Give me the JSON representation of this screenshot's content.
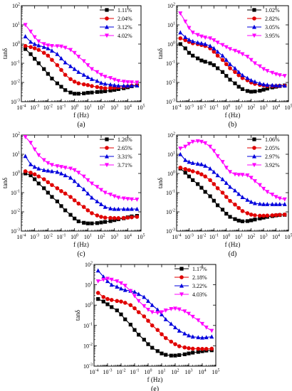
{
  "chart_data": [
    {
      "type": "line",
      "panel_label": "(a)",
      "xlabel": "f (Hz)",
      "ylabel": "tanδ",
      "xscale": "log",
      "yscale": "log",
      "xlim": [
        0.0001,
        100000
      ],
      "ylim": [
        0.001,
        100
      ],
      "xtick_exponents": [
        -4,
        -3,
        -2,
        -1,
        0,
        1,
        2,
        3,
        4,
        5
      ],
      "ytick_exponents": [
        -3,
        -2,
        -1,
        0,
        1,
        2
      ],
      "legend_position": "top-right",
      "x": [
        0.0002,
        0.0005,
        0.001,
        0.002,
        0.005,
        0.01,
        0.02,
        0.05,
        0.1,
        0.2,
        0.5,
        1,
        2,
        5,
        10,
        20,
        50,
        100,
        200,
        500,
        1000,
        2000,
        5000,
        10000,
        20000,
        50000
      ],
      "series": [
        {
          "name": "1.11%",
          "marker": "square",
          "color": "#000000",
          "values": [
            0.55,
            0.3,
            0.17,
            0.1,
            0.05,
            0.028,
            0.016,
            0.009,
            0.006,
            0.004,
            0.003,
            0.0026,
            0.0026,
            0.0027,
            0.0029,
            0.003,
            0.0032,
            0.0033,
            0.0035,
            0.0038,
            0.0041,
            0.0045,
            0.005,
            0.0056,
            0.0063,
            0.007
          ]
        },
        {
          "name": "2.04%",
          "marker": "circle",
          "color": "#e00000",
          "values": [
            0.8,
            0.7,
            0.6,
            0.5,
            0.35,
            0.25,
            0.15,
            0.08,
            0.045,
            0.025,
            0.015,
            0.011,
            0.009,
            0.008,
            0.0073,
            0.0065,
            0.0058,
            0.0053,
            0.005,
            0.0052,
            0.0054,
            0.0057,
            0.006,
            0.0063,
            0.0067,
            0.007
          ]
        },
        {
          "name": "3.12%",
          "marker": "triangle",
          "color": "#0000dd",
          "values": [
            2.5,
            1.3,
            1.0,
            0.85,
            0.7,
            0.6,
            0.45,
            0.3,
            0.18,
            0.11,
            0.07,
            0.05,
            0.035,
            0.025,
            0.019,
            0.015,
            0.012,
            0.0095,
            0.0085,
            0.0078,
            0.0072,
            0.0068,
            0.0067,
            0.0067,
            0.0068,
            0.0069
          ]
        },
        {
          "name": "4.02%",
          "marker": "triangle-down",
          "color": "#ff00ff",
          "values": [
            10,
            4.5,
            2.3,
            1.4,
            1.0,
            0.85,
            0.8,
            0.78,
            0.75,
            0.65,
            0.5,
            0.35,
            0.22,
            0.13,
            0.08,
            0.05,
            0.035,
            0.025,
            0.02,
            0.017,
            0.014,
            0.012,
            0.011,
            0.0105,
            0.0102,
            0.01
          ]
        }
      ]
    },
    {
      "type": "line",
      "panel_label": "(b)",
      "xlabel": "f (Hz)",
      "ylabel": "tanδ",
      "xscale": "log",
      "yscale": "log",
      "xlim": [
        0.0001,
        100000
      ],
      "ylim": [
        0.001,
        100
      ],
      "xtick_exponents": [
        -4,
        -3,
        -2,
        -1,
        0,
        1,
        2,
        3,
        4,
        5
      ],
      "ytick_exponents": [
        -3,
        -2,
        -1,
        0,
        1,
        2
      ],
      "legend_position": "top-right",
      "x": [
        0.0002,
        0.0005,
        0.001,
        0.002,
        0.005,
        0.01,
        0.02,
        0.05,
        0.1,
        0.2,
        0.5,
        1,
        2,
        5,
        10,
        20,
        50,
        100,
        200,
        500,
        1000,
        2000,
        5000,
        10000,
        20000,
        50000
      ],
      "series": [
        {
          "name": "1.02%",
          "marker": "square",
          "color": "#000000",
          "values": [
            1.0,
            0.6,
            0.35,
            0.25,
            0.18,
            0.14,
            0.12,
            0.1,
            0.08,
            0.055,
            0.035,
            0.022,
            0.014,
            0.009,
            0.006,
            0.0045,
            0.0036,
            0.0033,
            0.0034,
            0.0037,
            0.0042,
            0.0048,
            0.0055,
            0.006,
            0.0065,
            0.007
          ]
        },
        {
          "name": "2.82%",
          "marker": "circle",
          "color": "#e00000",
          "values": [
            2.0,
            1.6,
            1.3,
            1.1,
            1.0,
            0.9,
            0.8,
            0.6,
            0.4,
            0.25,
            0.15,
            0.09,
            0.055,
            0.035,
            0.024,
            0.017,
            0.013,
            0.01,
            0.0085,
            0.0075,
            0.007,
            0.0066,
            0.0065,
            0.0065,
            0.0066,
            0.0068
          ]
        },
        {
          "name": "3.05%",
          "marker": "triangle",
          "color": "#0000dd",
          "values": [
            4.0,
            2.3,
            1.7,
            1.4,
            1.2,
            1.1,
            1.0,
            0.8,
            0.6,
            0.4,
            0.25,
            0.15,
            0.09,
            0.055,
            0.035,
            0.024,
            0.017,
            0.013,
            0.011,
            0.009,
            0.008,
            0.0075,
            0.0072,
            0.007,
            0.0069,
            0.0068
          ]
        },
        {
          "name": "3.95%",
          "marker": "triangle-down",
          "color": "#ff00ff",
          "values": [
            40,
            15,
            7,
            4,
            3,
            2.5,
            2.2,
            2.0,
            1.6,
            1.2,
            0.9,
            0.7,
            0.55,
            0.45,
            0.38,
            0.3,
            0.22,
            0.15,
            0.1,
            0.07,
            0.05,
            0.04,
            0.032,
            0.027,
            0.024,
            0.022
          ]
        }
      ]
    },
    {
      "type": "line",
      "panel_label": "(c)",
      "xlabel": "f (Hz)",
      "ylabel": "tanδ",
      "xscale": "log",
      "yscale": "log",
      "xlim": [
        0.0001,
        100000
      ],
      "ylim": [
        0.001,
        100
      ],
      "xtick_exponents": [
        -4,
        -3,
        -2,
        -1,
        0,
        1,
        2,
        3,
        4,
        5
      ],
      "ytick_exponents": [
        -3,
        -2,
        -1,
        0,
        1,
        2
      ],
      "legend_position": "top-right",
      "x": [
        0.0002,
        0.0005,
        0.001,
        0.002,
        0.005,
        0.01,
        0.02,
        0.05,
        0.1,
        0.2,
        0.5,
        1,
        2,
        5,
        10,
        20,
        50,
        100,
        200,
        500,
        1000,
        2000,
        5000,
        10000,
        20000,
        50000
      ],
      "series": [
        {
          "name": "1.26%",
          "marker": "square",
          "color": "#000000",
          "values": [
            1.0,
            0.8,
            0.5,
            0.3,
            0.17,
            0.1,
            0.06,
            0.035,
            0.02,
            0.012,
            0.007,
            0.0045,
            0.0032,
            0.0027,
            0.0025,
            0.0025,
            0.0026,
            0.0028,
            0.003,
            0.0033,
            0.0037,
            0.0041,
            0.0046,
            0.0052,
            0.0058,
            0.0062
          ]
        },
        {
          "name": "2.65%",
          "marker": "circle",
          "color": "#e00000",
          "values": [
            1.3,
            1.1,
            0.9,
            0.7,
            0.5,
            0.35,
            0.25,
            0.17,
            0.12,
            0.09,
            0.06,
            0.04,
            0.027,
            0.018,
            0.012,
            0.0085,
            0.0065,
            0.0055,
            0.005,
            0.0048,
            0.0047,
            0.0047,
            0.0048,
            0.005,
            0.0052,
            0.0055
          ]
        },
        {
          "name": "3.31%",
          "marker": "triangle",
          "color": "#0000dd",
          "values": [
            8,
            3,
            2.2,
            1.8,
            1.5,
            1.4,
            1.3,
            1.2,
            1.0,
            0.8,
            0.6,
            0.4,
            0.25,
            0.15,
            0.09,
            0.055,
            0.035,
            0.025,
            0.018,
            0.015,
            0.014,
            0.014,
            0.014,
            0.014,
            0.014,
            0.014
          ]
        },
        {
          "name": "3.71%",
          "marker": "triangle-down",
          "color": "#ff00ff",
          "values": [
            80,
            40,
            18,
            9,
            5,
            3.5,
            2.8,
            2.4,
            2.2,
            2.0,
            1.8,
            1.5,
            1.1,
            0.7,
            0.45,
            0.3,
            0.2,
            0.14,
            0.1,
            0.08,
            0.065,
            0.055,
            0.05,
            0.047,
            0.045,
            0.044
          ]
        }
      ]
    },
    {
      "type": "line",
      "panel_label": "(d)",
      "xlabel": "f (Hz)",
      "ylabel": "tanδ",
      "xscale": "log",
      "yscale": "log",
      "xlim": [
        0.0001,
        100000
      ],
      "ylim": [
        0.001,
        100
      ],
      "xtick_exponents": [
        -4,
        -3,
        -2,
        -1,
        0,
        1,
        2,
        3,
        4,
        5
      ],
      "ytick_exponents": [
        -3,
        -2,
        -1,
        0,
        1,
        2
      ],
      "legend_position": "top-right",
      "x": [
        0.0002,
        0.0005,
        0.001,
        0.002,
        0.005,
        0.01,
        0.02,
        0.05,
        0.1,
        0.2,
        0.5,
        1,
        2,
        5,
        10,
        20,
        50,
        100,
        200,
        500,
        1000,
        2000,
        5000,
        10000,
        20000,
        50000
      ],
      "series": [
        {
          "name": "1.06%",
          "marker": "square",
          "color": "#000000",
          "values": [
            1.8,
            1.1,
            0.7,
            0.45,
            0.28,
            0.18,
            0.11,
            0.065,
            0.038,
            0.022,
            0.013,
            0.008,
            0.0055,
            0.0042,
            0.0035,
            0.0032,
            0.0033,
            0.0036,
            0.004,
            0.0045,
            0.005,
            0.0055,
            0.006,
            0.0065,
            0.0068,
            0.007
          ]
        },
        {
          "name": "2.05%",
          "marker": "circle",
          "color": "#e00000",
          "values": [
            2.0,
            1.7,
            1.5,
            1.3,
            1.1,
            0.9,
            0.7,
            0.45,
            0.28,
            0.17,
            0.1,
            0.06,
            0.037,
            0.024,
            0.016,
            0.011,
            0.0085,
            0.0072,
            0.0066,
            0.0063,
            0.0063,
            0.0064,
            0.0066,
            0.0068,
            0.007,
            0.0072
          ]
        },
        {
          "name": "2.97%",
          "marker": "triangle",
          "color": "#0000dd",
          "values": [
            10,
            5,
            4,
            3.5,
            3.2,
            3.0,
            2.5,
            1.8,
            1.2,
            0.8,
            0.5,
            0.32,
            0.2,
            0.13,
            0.085,
            0.058,
            0.042,
            0.033,
            0.028,
            0.026,
            0.025,
            0.025,
            0.025,
            0.025,
            0.025,
            0.025
          ]
        },
        {
          "name": "3.92%",
          "marker": "triangle-down",
          "color": "#ff00ff",
          "values": [
            20,
            25,
            35,
            45,
            48,
            45,
            38,
            25,
            15,
            8,
            4,
            2,
            1.2,
            0.9,
            0.85,
            0.85,
            0.8,
            0.6,
            0.4,
            0.25,
            0.16,
            0.11,
            0.08,
            0.06,
            0.05,
            0.045
          ]
        }
      ]
    },
    {
      "type": "line",
      "panel_label": "(e)",
      "xlabel": "f (Hz)",
      "ylabel": "tanδ",
      "xscale": "log",
      "yscale": "log",
      "xlim": [
        0.0001,
        100000
      ],
      "ylim": [
        0.001,
        100
      ],
      "xtick_exponents": [
        -4,
        -3,
        -2,
        -1,
        0,
        1,
        2,
        3,
        4,
        5
      ],
      "ytick_exponents": [
        -3,
        -2,
        -1,
        0,
        1,
        2
      ],
      "legend_position": "top-right",
      "x": [
        0.0002,
        0.0005,
        0.001,
        0.002,
        0.005,
        0.01,
        0.02,
        0.05,
        0.1,
        0.2,
        0.5,
        1,
        2,
        5,
        10,
        20,
        50,
        100,
        200,
        500,
        1000,
        2000,
        5000,
        10000,
        20000,
        50000
      ],
      "series": [
        {
          "name": "1.17%",
          "marker": "square",
          "color": "#000000",
          "values": [
            2.0,
            1.5,
            1.1,
            0.8,
            0.55,
            0.35,
            0.2,
            0.11,
            0.06,
            0.035,
            0.02,
            0.012,
            0.008,
            0.0055,
            0.0042,
            0.0036,
            0.0033,
            0.0033,
            0.0035,
            0.0038,
            0.0042,
            0.0046,
            0.005,
            0.0054,
            0.0058,
            0.006
          ]
        },
        {
          "name": "2.18%",
          "marker": "circle",
          "color": "#e00000",
          "values": [
            4.0,
            2.5,
            2.0,
            1.8,
            1.6,
            1.5,
            1.3,
            1.0,
            0.7,
            0.45,
            0.28,
            0.17,
            0.1,
            0.06,
            0.037,
            0.024,
            0.016,
            0.012,
            0.0095,
            0.0083,
            0.0076,
            0.0072,
            0.0071,
            0.007,
            0.007,
            0.0072
          ]
        },
        {
          "name": "3.22%",
          "marker": "triangle",
          "color": "#0000dd",
          "values": [
            50,
            25,
            15,
            10,
            8,
            6.5,
            5.5,
            5.0,
            4.5,
            3.5,
            2.5,
            1.6,
            1.0,
            0.6,
            0.35,
            0.2,
            0.12,
            0.08,
            0.055,
            0.04,
            0.032,
            0.028,
            0.026,
            0.025,
            0.026,
            0.028
          ]
        },
        {
          "name": "4.03%",
          "marker": "triangle-down",
          "color": "#ff00ff",
          "values": [
            15,
            18,
            20,
            18,
            15,
            12,
            9,
            5,
            2.8,
            1.6,
            0.9,
            0.6,
            0.45,
            0.42,
            0.45,
            0.55,
            0.65,
            0.68,
            0.62,
            0.5,
            0.38,
            0.27,
            0.18,
            0.12,
            0.08,
            0.055
          ]
        }
      ]
    }
  ]
}
